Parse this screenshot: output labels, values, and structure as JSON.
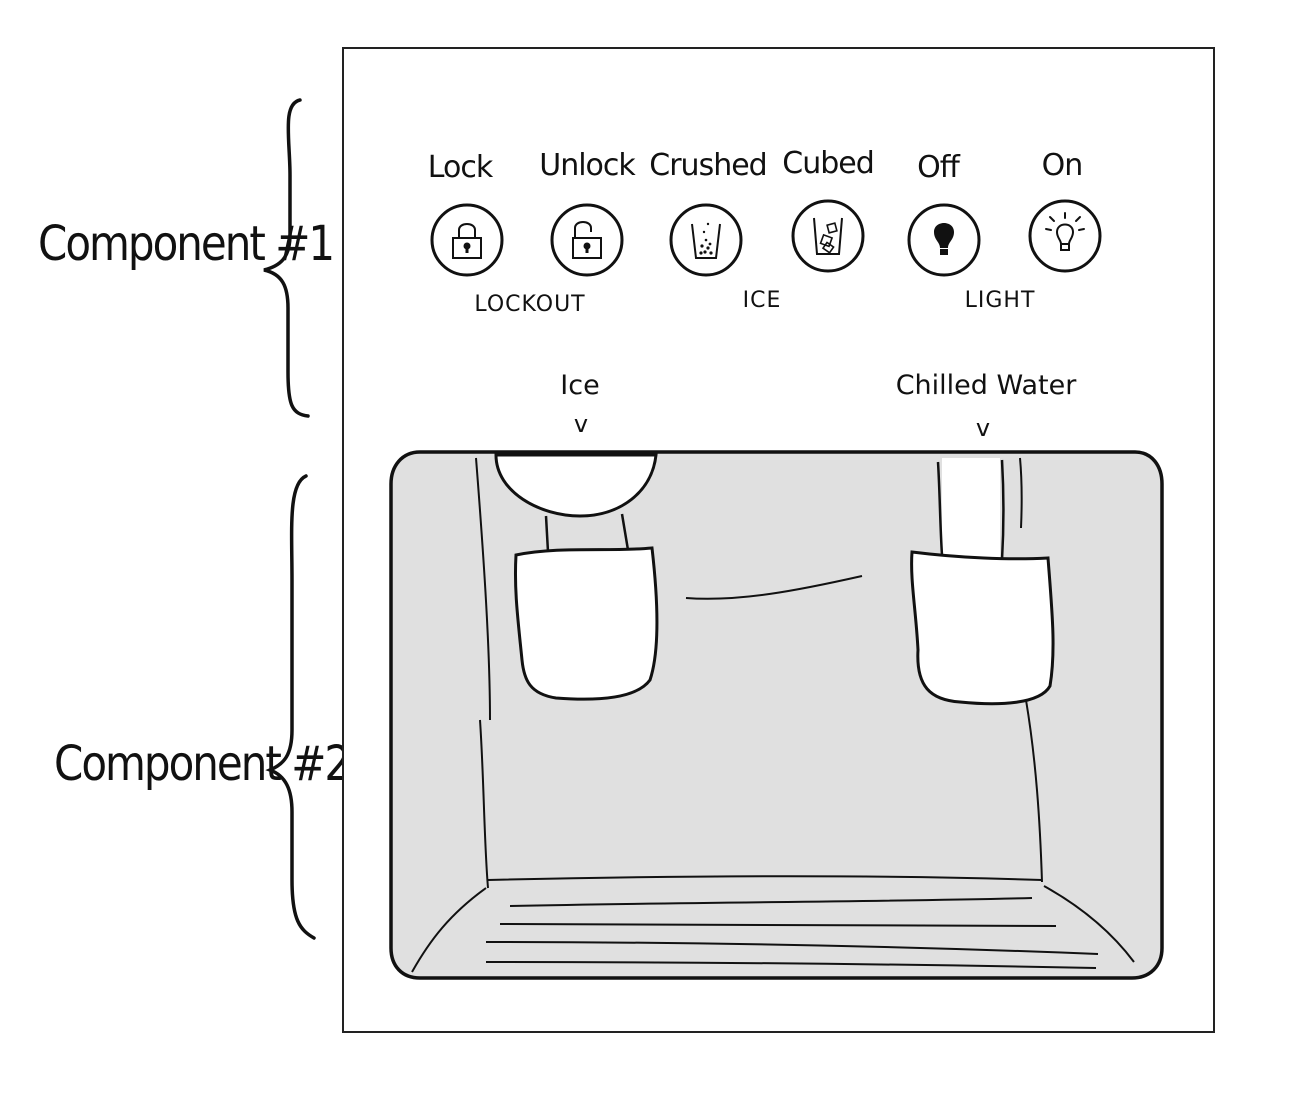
{
  "annotations": {
    "component1": "Component #1",
    "component2": "Component #2"
  },
  "controls": {
    "buttons": [
      {
        "id": "lock",
        "label": "Lock",
        "icon": "locked-padlock-icon"
      },
      {
        "id": "unlock",
        "label": "Unlock",
        "icon": "unlocked-padlock-icon"
      },
      {
        "id": "crushed",
        "label": "Crushed",
        "icon": "crushed-ice-cup-icon"
      },
      {
        "id": "cubed",
        "label": "Cubed",
        "icon": "cubed-ice-cup-icon"
      },
      {
        "id": "off",
        "label": "Off",
        "icon": "light-bulb-off-icon"
      },
      {
        "id": "on",
        "label": "On",
        "icon": "light-bulb-on-icon"
      }
    ],
    "groups": {
      "lockout": "LOCKOUT",
      "ice": "ICE",
      "light": "LIGHT"
    }
  },
  "dispenser": {
    "ice_label": "Ice",
    "water_label": "Chilled Water",
    "chevron": "v",
    "tray_color": "#e0e0e0"
  }
}
